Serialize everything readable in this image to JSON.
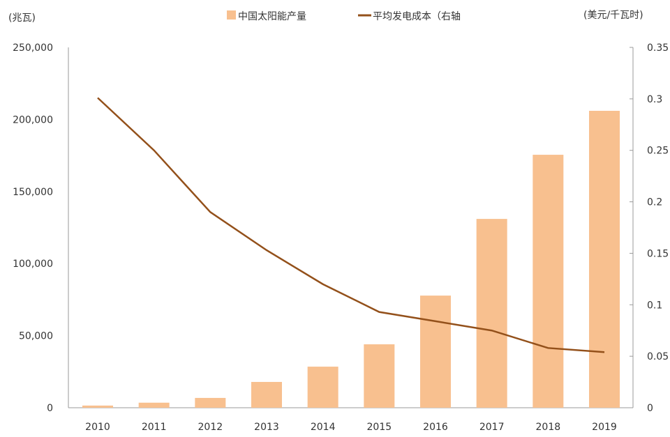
{
  "chart_data": {
    "type": "bar",
    "title": "",
    "categories": [
      "2010",
      "2011",
      "2012",
      "2013",
      "2014",
      "2015",
      "2016",
      "2017",
      "2018",
      "2019"
    ],
    "series": [
      {
        "name": "中国太阳能产量",
        "type": "bar",
        "axis": "left",
        "color": "#f8c08f",
        "values": [
          1500,
          3500,
          6800,
          17900,
          28500,
          44000,
          77800,
          131000,
          175500,
          206000
        ]
      },
      {
        "name": "平均发电成本（右轴",
        "type": "line",
        "axis": "right",
        "color": "#93501a",
        "values": [
          0.301,
          0.25,
          0.19,
          0.153,
          0.12,
          0.093,
          0.084,
          0.075,
          0.058,
          0.054
        ]
      }
    ],
    "ylabel_left": "(兆瓦)",
    "ylabel_right": "(美元/千瓦时)",
    "ylim_left": [
      0,
      250000
    ],
    "ylim_right": [
      0,
      0.35
    ],
    "yticks_left": [
      "0",
      "50,000",
      "100,000",
      "150,000",
      "200,000",
      "250,000"
    ],
    "yticks_right": [
      "0",
      "0.05",
      "0.1",
      "0.15",
      "0.2",
      "0.25",
      "0.3",
      "0.35"
    ],
    "grid": false,
    "legend": "top-center"
  }
}
